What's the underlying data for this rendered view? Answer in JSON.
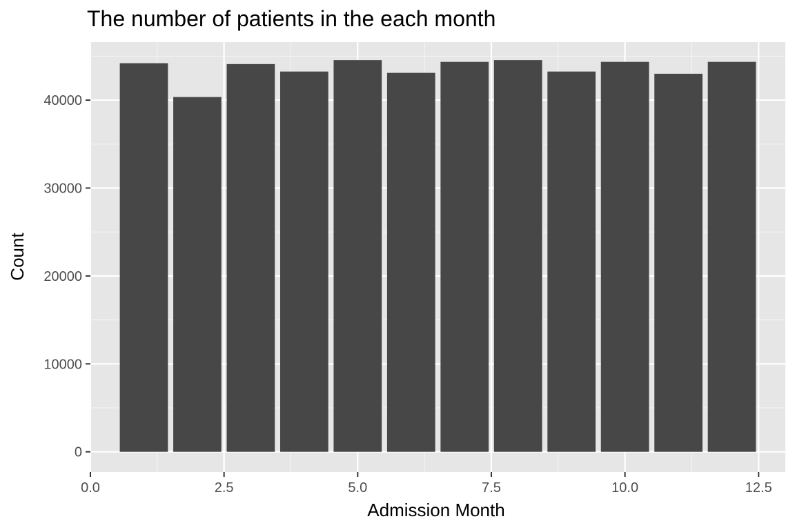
{
  "chart_data": {
    "type": "bar",
    "title": "The number of patients in the each month",
    "xlabel": "Admission Month",
    "ylabel": "Count",
    "x": [
      1,
      2,
      3,
      4,
      5,
      6,
      7,
      8,
      9,
      10,
      11,
      12
    ],
    "values": [
      44200,
      40350,
      44100,
      43250,
      44550,
      43100,
      44350,
      44550,
      43250,
      44350,
      43000,
      44350
    ],
    "bar_width": 0.9,
    "xlim": [
      0,
      13
    ],
    "ylim": [
      -2300,
      46600
    ],
    "x_ticks": [
      0,
      2.5,
      5,
      7.5,
      10,
      12.5
    ],
    "x_tick_labels": [
      "0.0",
      "2.5",
      "5.0",
      "7.5",
      "10.0",
      "12.5"
    ],
    "y_ticks": [
      0,
      10000,
      20000,
      30000,
      40000
    ],
    "y_tick_labels": [
      "0",
      "10000",
      "20000",
      "30000",
      "40000"
    ],
    "grid": true,
    "colors": {
      "panel": "#e6e6e6",
      "grid_major": "#ffffff",
      "bar": "#474747",
      "tick": "#333333"
    }
  }
}
